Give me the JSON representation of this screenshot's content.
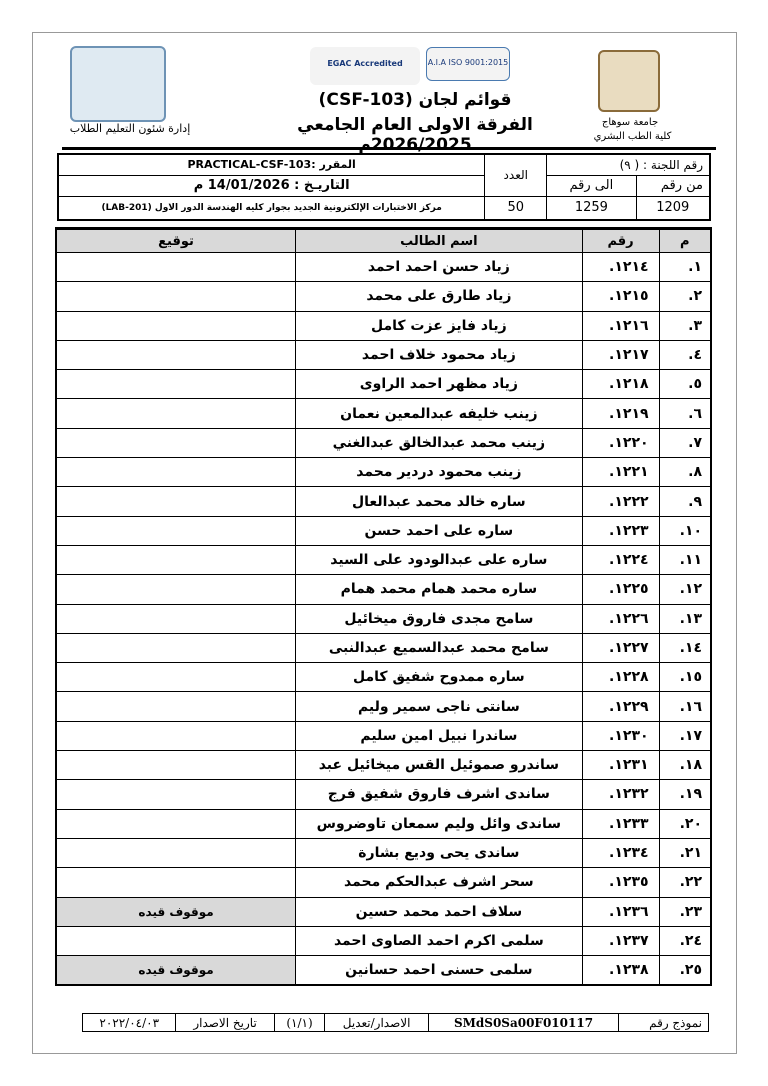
{
  "header": {
    "right_uni": "جامعة سوهاج",
    "right_fac": "كلية الطب البشري",
    "left_dept": "إدارة شئون التعليم الطلاب",
    "title1": "قوائم لجان (CSF-103)",
    "title2": "الفرقة الاولى العام الجامعي 2026/2025م",
    "accred1": "EGAC Accredited",
    "accred2": "A.I.A ISO 9001:2015"
  },
  "info": {
    "committee": "رقم اللجنة : ( ٩)",
    "from_label": "من رقم",
    "to_label": "الى رقم",
    "count_label": "العدد",
    "from": "1209",
    "to": "1259",
    "count": "50",
    "course": "المقرر :PRACTICAL-CSF-103",
    "date": "التاريـخ : 14/01/2026 م",
    "location": "مركز الاختبارات الإلكترونية الجديد بجوار كليه الهندسة الدور الاول (LAB-201)"
  },
  "table": {
    "headers": [
      "م",
      "رقم",
      "اسم الطالب",
      "توقيع"
    ],
    "rows": [
      [
        "١.",
        "١٢١٤.",
        "زياد حسن احمد احمد",
        ""
      ],
      [
        "٢.",
        "١٢١٥.",
        "زياد طارق على محمد",
        ""
      ],
      [
        "٣.",
        "١٢١٦.",
        "زياد فايز عزت كامل",
        ""
      ],
      [
        "٤.",
        "١٢١٧.",
        "زياد محمود خلاف احمد",
        ""
      ],
      [
        "٥.",
        "١٢١٨.",
        "زياد مظهر احمد الراوى",
        ""
      ],
      [
        "٦.",
        "١٢١٩.",
        "زينب خليفه عبدالمعين نعمان",
        ""
      ],
      [
        "٧.",
        "١٢٢٠.",
        "زينب محمد عبدالخالق عبدالغني",
        ""
      ],
      [
        "٨.",
        "١٢٢١.",
        "زينب محمود دردير محمد",
        ""
      ],
      [
        "٩.",
        "١٢٢٢.",
        "ساره خالد محمد عبدالعال",
        ""
      ],
      [
        "١٠.",
        "١٢٢٣.",
        "ساره على احمد حسن",
        ""
      ],
      [
        "١١.",
        "١٢٢٤.",
        "ساره على عبدالودود على السيد",
        ""
      ],
      [
        "١٢.",
        "١٢٢٥.",
        "ساره محمد همام محمد همام",
        ""
      ],
      [
        "١٣.",
        "١٢٢٦.",
        "سامح مجدى فاروق ميخائيل",
        ""
      ],
      [
        "١٤.",
        "١٢٢٧.",
        "سامح محمد عبدالسميع عبدالنبى",
        ""
      ],
      [
        "١٥.",
        "١٢٢٨.",
        "ساره ممدوح شفيق كامل",
        ""
      ],
      [
        "١٦.",
        "١٢٢٩.",
        "سانتى ناجى سمير وليم",
        ""
      ],
      [
        "١٧.",
        "١٢٣٠.",
        "ساندرا نبيل امين سليم",
        ""
      ],
      [
        "١٨.",
        "١٢٣١.",
        "ساندرو صموئيل القس ميخائيل عبد",
        ""
      ],
      [
        "١٩.",
        "١٢٣٢.",
        "ساندى اشرف فاروق شفيق فرج",
        ""
      ],
      [
        "٢٠.",
        "١٢٣٣.",
        "ساندى وائل وليم سمعان تاوضروس",
        ""
      ],
      [
        "٢١.",
        "١٢٣٤.",
        "ساندى يحى وديع بشارة",
        ""
      ],
      [
        "٢٢.",
        "١٢٣٥.",
        "سحر اشرف عبدالحكم محمد",
        ""
      ],
      [
        "٢٣.",
        "١٢٣٦.",
        "سلاف احمد محمد حسين",
        "موقوف قيده"
      ],
      [
        "٢٤.",
        "١٢٣٧.",
        "سلمى اكرم احمد الصاوى احمد",
        ""
      ],
      [
        "٢٥.",
        "١٢٣٨.",
        "سلمى حسنى احمد حسانين",
        "موقوف قيده"
      ]
    ]
  },
  "footer": {
    "form_label": "نموذج رقم",
    "form_no": "SMdS0Sa00F010117",
    "issue_label": "الاصدار/تعديل",
    "issue": "(١/١)",
    "date_label": "تاريخ الاصدار",
    "date": "٢٠٢٢/٠٤/٠٣"
  },
  "colors": {
    "shade": "#d9d9d9"
  }
}
